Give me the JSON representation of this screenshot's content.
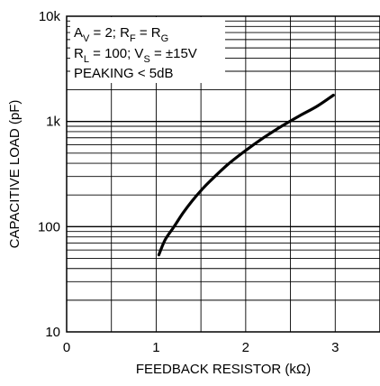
{
  "chart_data": {
    "type": "line",
    "xlabel": "FEEDBACK RESISTOR (kΩ)",
    "ylabel": "CAPACITIVE LOAD (pF)",
    "xlim": [
      0,
      3.5
    ],
    "ylim": [
      10,
      10000
    ],
    "yscale": "log",
    "x_ticks": [
      {
        "value": 0,
        "label": "0"
      },
      {
        "value": 1,
        "label": "1"
      },
      {
        "value": 2,
        "label": "2"
      },
      {
        "value": 3,
        "label": "3"
      }
    ],
    "x_grid": [
      0.5,
      1,
      1.5,
      2,
      2.5,
      3
    ],
    "y_ticks": [
      {
        "value": 10,
        "label": "10"
      },
      {
        "value": 100,
        "label": "100"
      },
      {
        "value": 1000,
        "label": "1k"
      },
      {
        "value": 10000,
        "label": "10k"
      }
    ],
    "grid": true,
    "line_color": "#000000",
    "series": [
      {
        "x": [
          1.03,
          1.1,
          1.2,
          1.3,
          1.4,
          1.5,
          1.6,
          1.8,
          2.0,
          2.2,
          2.4,
          2.6,
          2.8,
          2.98
        ],
        "y": [
          54,
          75,
          100,
          135,
          175,
          220,
          270,
          390,
          530,
          700,
          900,
          1130,
          1400,
          1780
        ]
      }
    ],
    "annotation": {
      "line1": {
        "a": "A",
        "a_sub": "V",
        "b": " = 2; R",
        "b_sub": "F",
        "c": " = R",
        "c_sub": "G"
      },
      "line2": {
        "a": "R",
        "a_sub": "L",
        "b": " = 100; V",
        "b_sub": "S",
        "c": " = ±15V"
      },
      "line3": "PEAKING < 5dB"
    }
  }
}
